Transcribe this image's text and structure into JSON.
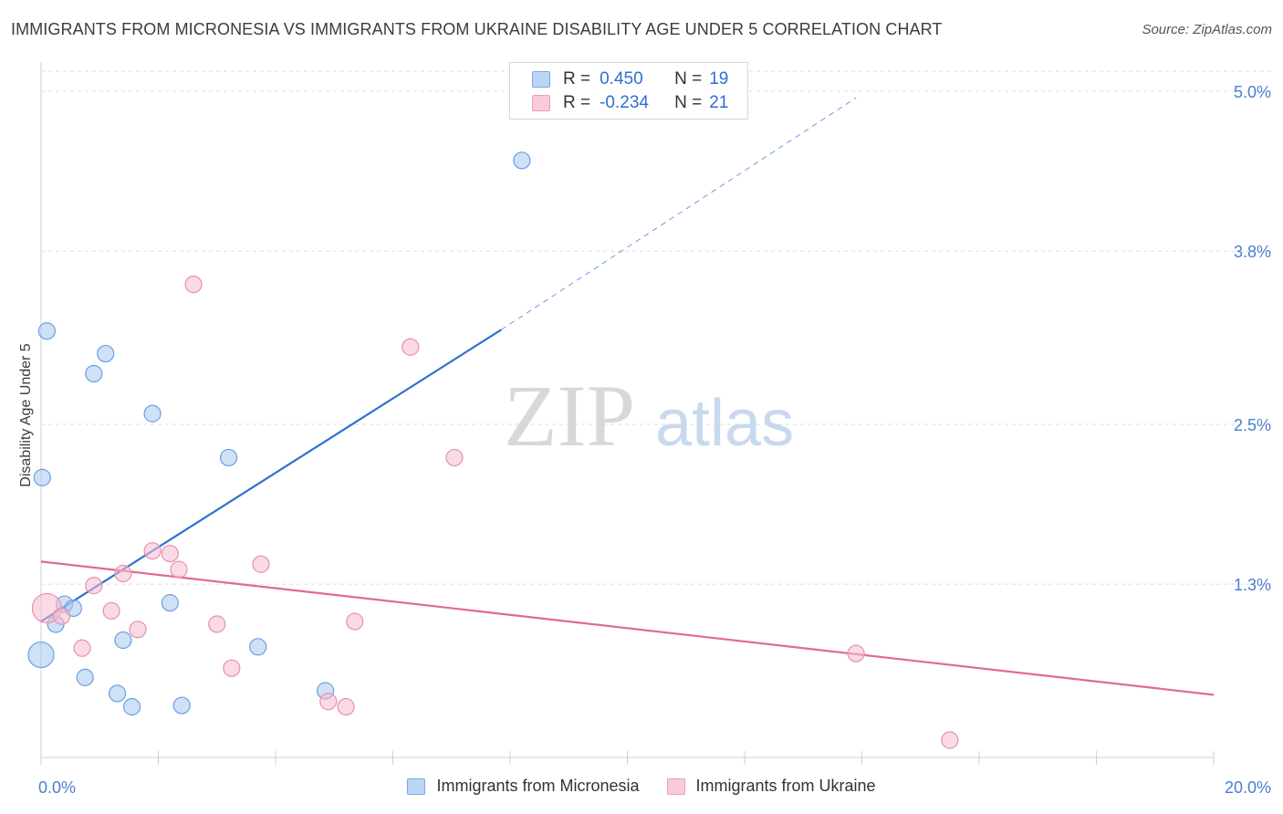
{
  "title": "IMMIGRANTS FROM MICRONESIA VS IMMIGRANTS FROM UKRAINE DISABILITY AGE UNDER 5 CORRELATION CHART",
  "source": "Source: ZipAtlas.com",
  "watermark": {
    "zip": "ZIP",
    "atlas": "atlas"
  },
  "legend": {
    "rows": [
      {
        "r_label": "R =",
        "r_value": "0.450",
        "n_label": "N =",
        "n_value": "19"
      },
      {
        "r_label": "R =",
        "r_value": "-0.234",
        "n_label": "N =",
        "n_value": "21"
      }
    ]
  },
  "chart_data": {
    "type": "scatter",
    "title": "IMMIGRANTS FROM MICRONESIA VS IMMIGRANTS FROM UKRAINE DISABILITY AGE UNDER 5 CORRELATION CHART",
    "xlabel": "",
    "ylabel": "Disability Age Under 5",
    "xlim": [
      0,
      20
    ],
    "ylim": [
      0,
      5.15
    ],
    "x_tick_labels": [
      "0.0%",
      "20.0%"
    ],
    "y_ticks": [
      1.3,
      2.5,
      3.8,
      5.0
    ],
    "y_tick_labels": [
      "1.3%",
      "2.5%",
      "3.8%",
      "5.0%"
    ],
    "grid": true,
    "series": [
      {
        "name": "Immigrants from Micronesia",
        "color": "#a8c8f0",
        "stroke": "#6a9fe0",
        "line_color": "#2f72d0",
        "x": [
          0.0,
          0.25,
          0.4,
          0.55,
          0.75,
          0.9,
          1.1,
          1.3,
          1.4,
          1.55,
          1.9,
          2.2,
          2.4,
          3.2,
          3.7,
          4.85,
          8.2,
          0.02,
          0.1
        ],
        "y": [
          0.77,
          1.0,
          1.15,
          1.12,
          0.6,
          2.88,
          3.03,
          0.48,
          0.88,
          0.38,
          2.58,
          1.16,
          0.39,
          2.25,
          0.83,
          0.5,
          4.48,
          2.1,
          3.2
        ],
        "sizes": [
          14,
          9,
          9,
          9,
          9,
          9,
          9,
          9,
          9,
          9,
          9,
          9,
          9,
          9,
          9,
          9,
          9,
          9,
          9
        ],
        "trend": {
          "x0": 0.0,
          "y0": 1.02,
          "x1": 7.85,
          "y1": 3.21,
          "dash_to_x": 13.9,
          "dash_to_y": 4.95
        }
      },
      {
        "name": "Immigrants from Ukraine",
        "color": "#f6bccd",
        "stroke": "#e890ab",
        "line_color": "#e06a93",
        "x": [
          0.1,
          0.35,
          0.7,
          0.9,
          1.2,
          1.4,
          1.65,
          1.9,
          2.2,
          2.35,
          2.6,
          3.0,
          3.25,
          3.75,
          4.9,
          5.2,
          5.35,
          6.3,
          13.9,
          15.5,
          7.05
        ],
        "y": [
          1.12,
          1.06,
          0.82,
          1.29,
          1.1,
          1.38,
          0.96,
          1.55,
          1.53,
          1.41,
          3.55,
          1.0,
          0.67,
          1.45,
          0.42,
          0.38,
          1.02,
          3.08,
          0.78,
          0.13,
          2.25
        ],
        "sizes": [
          16,
          9,
          9,
          9,
          9,
          9,
          9,
          9,
          9,
          9,
          9,
          9,
          9,
          9,
          9,
          9,
          9,
          9,
          9,
          9,
          9
        ],
        "trend": {
          "x0": 0.0,
          "y0": 1.47,
          "x1": 20.0,
          "y1": 0.47
        }
      }
    ]
  },
  "bottom_legend": [
    {
      "label": "Immigrants from Micronesia"
    },
    {
      "label": "Immigrants from Ukraine"
    }
  ]
}
